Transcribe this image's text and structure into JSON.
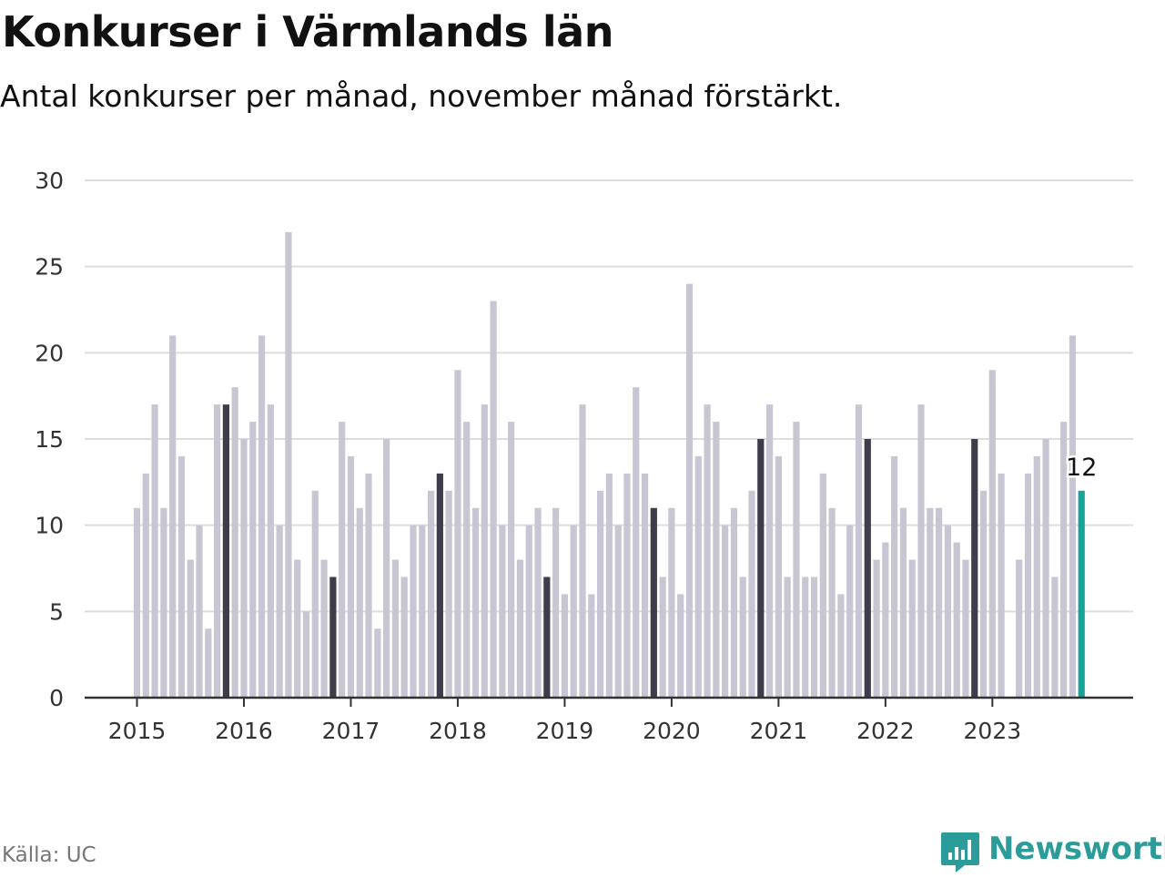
{
  "header": {
    "title": "Konkurser i Värmlands län",
    "subtitle": "Antal konkurser per månad, november månad förstärkt."
  },
  "footer": {
    "source": "Källa: UC",
    "brand": "Newsworthy"
  },
  "colors": {
    "bar": "#c8c6d2",
    "highlight": "#3e3d4b",
    "latest": "#17a398",
    "grid": "#dddddd",
    "axis": "#333333",
    "brand": "#2c9c9a"
  },
  "chart_data": {
    "type": "bar",
    "title": "Konkurser i Värmlands län",
    "subtitle": "Antal konkurser per månad, november månad förstärkt.",
    "xlabel": "",
    "ylabel": "",
    "ylim": [
      0,
      30
    ],
    "y_ticks": [
      0,
      5,
      10,
      15,
      20,
      25,
      30
    ],
    "x_ticks": [
      "2015",
      "2016",
      "2017",
      "2018",
      "2019",
      "2020",
      "2021",
      "2022",
      "2023"
    ],
    "start": "2015-01",
    "end": "2023-11",
    "grid": true,
    "highlight_month": "november",
    "latest_label": "12",
    "values": [
      11,
      13,
      17,
      11,
      21,
      14,
      8,
      10,
      4,
      17,
      17,
      18,
      15,
      16,
      21,
      17,
      10,
      27,
      8,
      5,
      12,
      8,
      7,
      16,
      14,
      11,
      13,
      4,
      15,
      8,
      7,
      10,
      10,
      12,
      13,
      12,
      19,
      16,
      11,
      17,
      23,
      10,
      16,
      8,
      10,
      11,
      7,
      11,
      6,
      10,
      17,
      6,
      12,
      13,
      10,
      13,
      18,
      13,
      11,
      7,
      11,
      6,
      24,
      14,
      17,
      16,
      10,
      11,
      7,
      12,
      15,
      17,
      14,
      7,
      16,
      7,
      7,
      13,
      11,
      6,
      10,
      17,
      15,
      8,
      9,
      14,
      11,
      8,
      17,
      11,
      11,
      10,
      9,
      8,
      15,
      12,
      19,
      13,
      0,
      8,
      13,
      14,
      15,
      7,
      16,
      21,
      12
    ]
  }
}
